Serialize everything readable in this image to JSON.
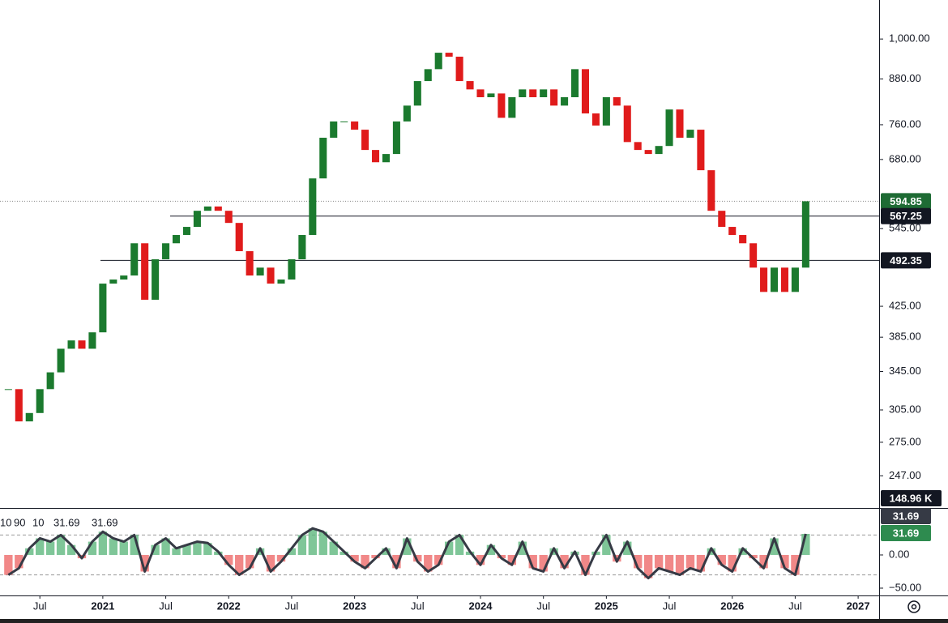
{
  "chart_data": [
    {
      "type": "candlestick",
      "x": [
        -9,
        -8,
        -7,
        -6,
        -5,
        -4,
        -3,
        -2,
        -1,
        0,
        1,
        2,
        3,
        4,
        5,
        6,
        7,
        8,
        9,
        10,
        11,
        12,
        13,
        14,
        15,
        16,
        17,
        18,
        19,
        20,
        21,
        22,
        23,
        24,
        25,
        26,
        27,
        28,
        29,
        30,
        31,
        32,
        33,
        34,
        35,
        36,
        37,
        38,
        39,
        40,
        41,
        42,
        43,
        44,
        45,
        46,
        47,
        48,
        49,
        50,
        51,
        52,
        53,
        54,
        55,
        56,
        57,
        58,
        59,
        60,
        61,
        62,
        63,
        64,
        65,
        66,
        67
      ],
      "values": [
        326,
        294,
        302,
        326,
        344,
        371,
        381,
        371,
        391,
        457,
        463,
        469,
        520,
        434,
        494,
        520,
        534,
        548,
        577,
        585,
        577,
        555,
        507,
        469,
        481,
        457,
        463,
        494,
        534,
        640,
        729,
        768,
        768,
        748,
        701,
        674,
        692,
        768,
        808,
        874,
        908,
        957,
        945,
        874,
        851,
        830,
        840,
        777,
        830,
        851,
        830,
        851,
        808,
        830,
        908,
        788,
        758,
        830,
        808,
        719,
        701,
        692,
        710,
        798,
        729,
        748,
        657,
        577,
        548,
        534,
        520,
        481,
        445,
        481,
        445,
        481,
        594.85
      ],
      "up_color": "#1b7a2e",
      "down_color": "#e01b1b",
      "log_scale": true,
      "xlim": [
        -9.8,
        74
      ],
      "xticks": [
        {
          "value": -6,
          "label": "Jul"
        },
        {
          "value": 0,
          "label": "2021"
        },
        {
          "value": 6,
          "label": "Jul"
        },
        {
          "value": 12,
          "label": "2022"
        },
        {
          "value": 18,
          "label": "Jul"
        },
        {
          "value": 24,
          "label": "2023"
        },
        {
          "value": 30,
          "label": "Jul"
        },
        {
          "value": 36,
          "label": "2024"
        },
        {
          "value": 42,
          "label": "Jul"
        },
        {
          "value": 48,
          "label": "2025"
        },
        {
          "value": 54,
          "label": "Jul"
        },
        {
          "value": 60,
          "label": "2026"
        },
        {
          "value": 66,
          "label": "Jul"
        },
        {
          "value": 72,
          "label": "2027"
        }
      ],
      "ylim": [
        224,
        1133
      ],
      "yticks": [
        {
          "value": 247,
          "label": "247.00"
        },
        {
          "value": 275,
          "label": "275.00"
        },
        {
          "value": 305,
          "label": "305.00"
        },
        {
          "value": 345,
          "label": "345.00"
        },
        {
          "value": 385,
          "label": "385.00"
        },
        {
          "value": 425,
          "label": "425.00"
        },
        {
          "value": 545,
          "label": "545.00"
        },
        {
          "value": 680,
          "label": "680.00"
        },
        {
          "value": 760,
          "label": "760.00"
        },
        {
          "value": 880,
          "label": "880.00"
        },
        {
          "value": 1000,
          "label": "1,000.00"
        }
      ],
      "last_price": 594.85,
      "levels": [
        567.25,
        492.35
      ],
      "volume_label": "148.96 K"
    },
    {
      "type": "oscillator",
      "params": [
        10,
        90,
        10
      ],
      "readouts": [
        31.69,
        31.69
      ],
      "values": [
        -30,
        -20,
        10,
        25,
        20,
        30,
        15,
        -5,
        20,
        35,
        25,
        20,
        30,
        -25,
        15,
        25,
        10,
        15,
        20,
        18,
        5,
        -15,
        -30,
        -20,
        10,
        -25,
        -10,
        10,
        30,
        40,
        35,
        20,
        5,
        -10,
        -20,
        -5,
        10,
        -20,
        25,
        -10,
        -25,
        -15,
        20,
        30,
        5,
        -15,
        15,
        -5,
        -15,
        20,
        -20,
        -25,
        10,
        -20,
        5,
        -30,
        5,
        30,
        -10,
        20,
        -20,
        -35,
        -20,
        -25,
        -30,
        -20,
        -25,
        10,
        -15,
        -25,
        10,
        -5,
        -20,
        25,
        -20,
        -30,
        31.69
      ],
      "line_color": "#363a45",
      "up_color": "#5fb87e",
      "down_color": "#ee6a6a",
      "ylim": [
        -61,
        69.5
      ],
      "yticks": [
        {
          "value": 0,
          "label": "0.00"
        },
        {
          "value": -50,
          "label": "−50.00"
        }
      ],
      "levels": [
        30,
        -30
      ]
    }
  ]
}
